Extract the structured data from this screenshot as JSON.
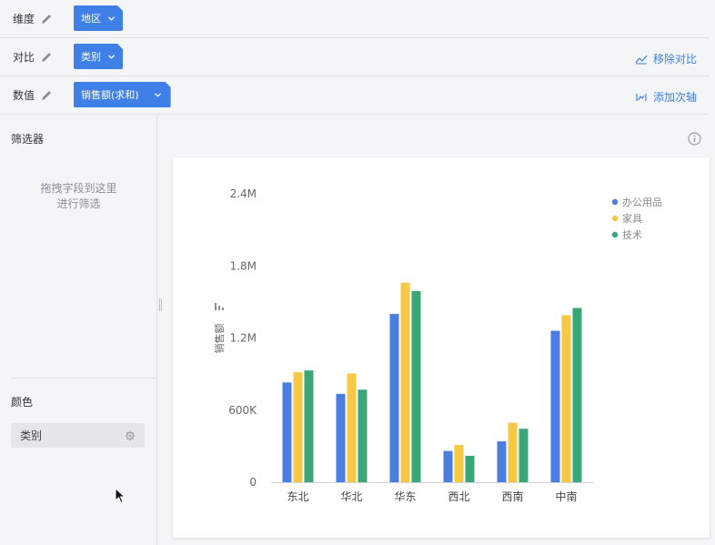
{
  "rows": [
    {
      "label": "维度",
      "pill": "地区",
      "action": ""
    },
    {
      "label": "对比",
      "pill": "类别",
      "action": "移除对比"
    },
    {
      "label": "数值",
      "pill": "销售额(求和)",
      "action": "添加次轴"
    }
  ],
  "sidebar": {
    "filter_title": "筛选器",
    "filter_hint_line1": "拖拽字段到这里",
    "filter_hint_line2": "进行筛选",
    "color_title": "颜色",
    "color_chip": "类别"
  },
  "colors": {
    "accent": "#3f7fe8",
    "office": "#4a7ee0",
    "furniture": "#f6c844",
    "tech": "#3aa876"
  },
  "chart_data": {
    "type": "bar",
    "categories": [
      "东北",
      "华北",
      "华东",
      "西北",
      "西南",
      "中南"
    ],
    "series": [
      {
        "name": "办公用品",
        "values": [
          830000,
          735000,
          1400000,
          260000,
          340000,
          1260000
        ]
      },
      {
        "name": "家具",
        "values": [
          915000,
          905000,
          1660000,
          310000,
          495000,
          1390000
        ]
      },
      {
        "name": "技术",
        "values": [
          930000,
          770000,
          1590000,
          220000,
          445000,
          1450000
        ]
      }
    ],
    "ylabel": "销售额",
    "yticks": [
      "0",
      "600K",
      "1.2M",
      "1.8M",
      "2.4M"
    ],
    "ylim": [
      0,
      2400000
    ],
    "legend": "top-right",
    "grid": false
  }
}
